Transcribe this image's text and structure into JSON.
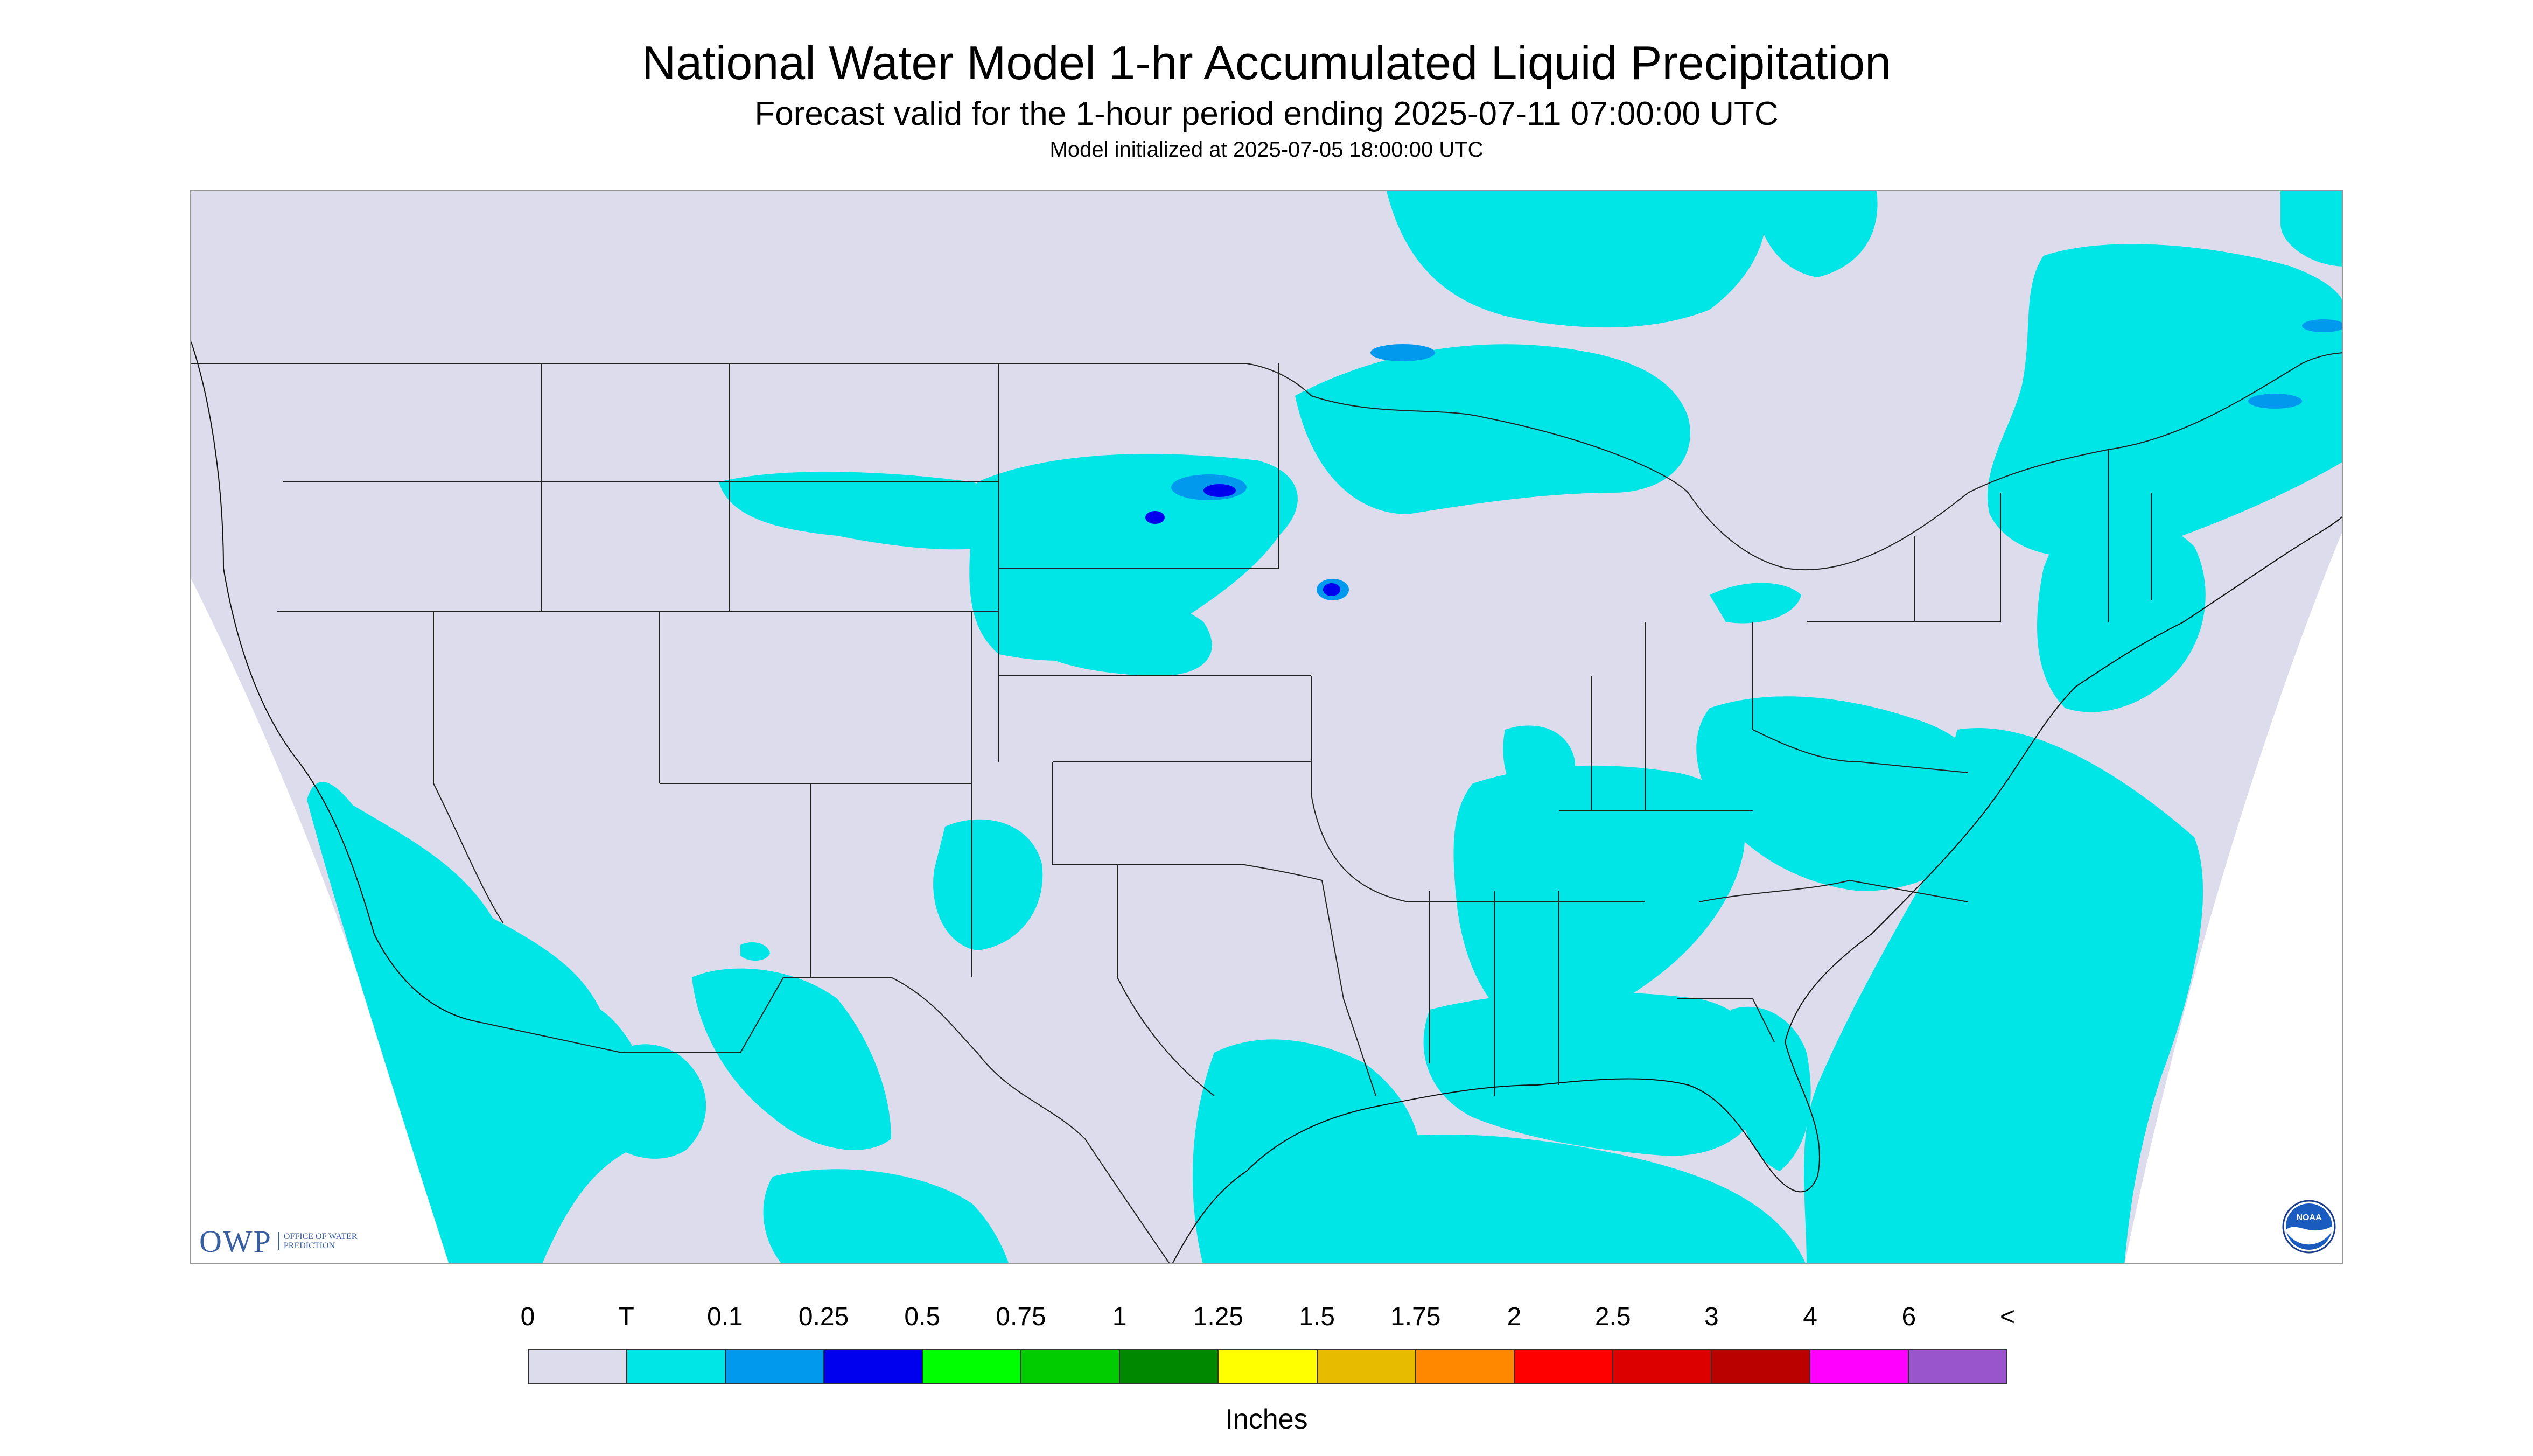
{
  "header": {
    "title": "National Water Model 1-hr Accumulated Liquid Precipitation",
    "subtitle": "Forecast valid for the 1-hour period ending 2025-07-11 07:00:00 UTC",
    "init": "Model initialized at 2025-07-05 18:00:00 UTC"
  },
  "map": {
    "background_color": "#dcdcec",
    "outside_color": "#ffffff",
    "light_precip_color": "#00e5e5"
  },
  "logos": {
    "owp_mark": "OWP",
    "owp_text": "OFFICE OF WATER PREDICTION",
    "noaa": "NOAA"
  },
  "legend": {
    "units": "Inches",
    "ticks": [
      "0",
      "T",
      "0.1",
      "0.25",
      "0.5",
      "0.75",
      "1",
      "1.25",
      "1.5",
      "1.75",
      "2",
      "2.5",
      "3",
      "4",
      "6",
      "<"
    ],
    "colors": [
      "#dcdcec",
      "#00e5e5",
      "#0099ee",
      "#0000ee",
      "#00ff00",
      "#00cc00",
      "#008800",
      "#ffff00",
      "#e6bb00",
      "#ff8800",
      "#ff0000",
      "#dd0000",
      "#bb0000",
      "#ff00ff",
      "#9955cc"
    ]
  }
}
